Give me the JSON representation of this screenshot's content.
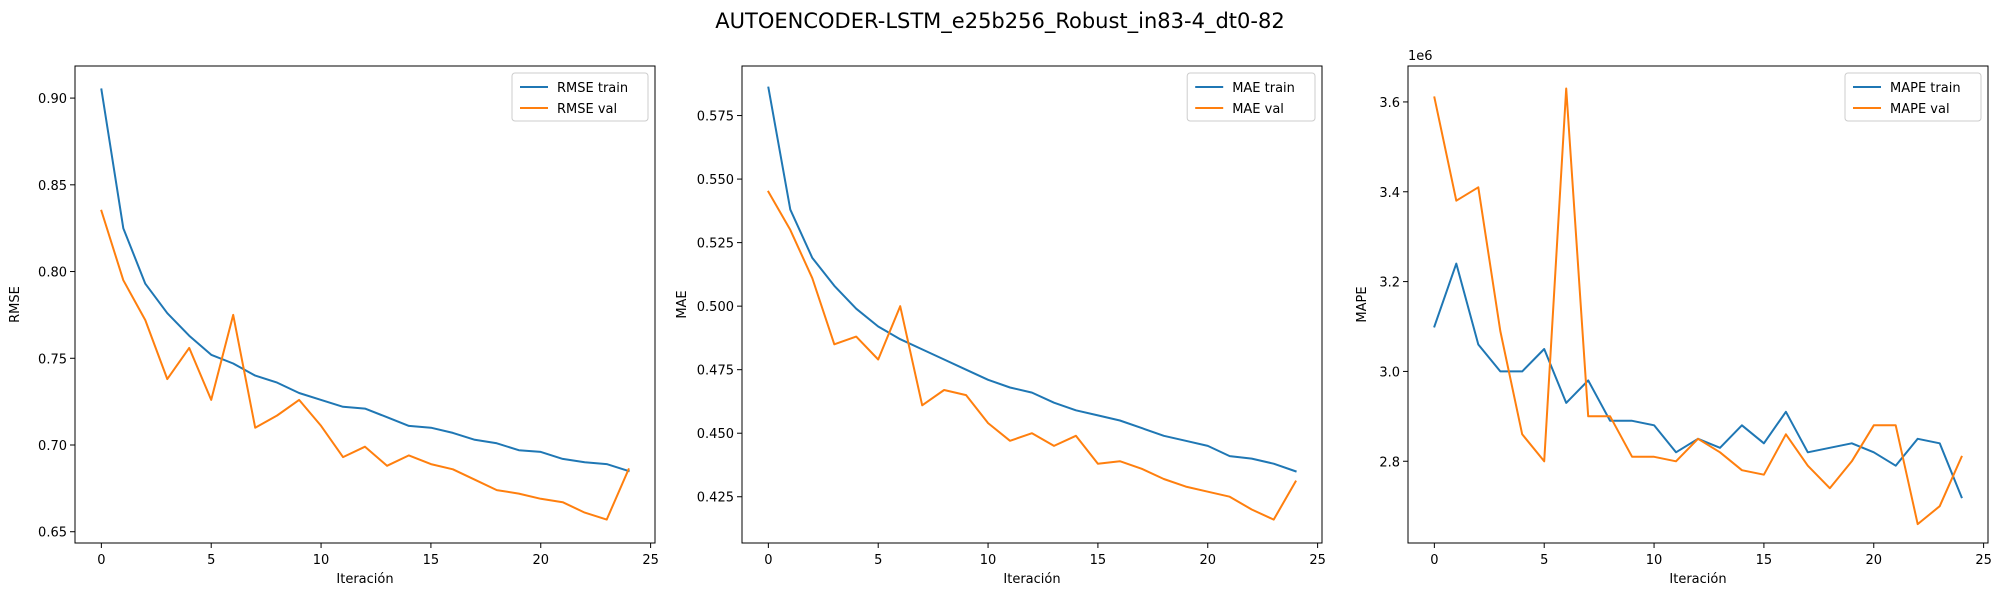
{
  "title": "AUTOENCODER-LSTM_e25b256_Robust_in83-4_dt0-82",
  "colors": {
    "train": "#1f77b4",
    "val": "#ff7f0e"
  },
  "chart_data": [
    {
      "type": "line",
      "xlabel": "Iteración",
      "ylabel": "RMSE",
      "xlim": [
        -1.2,
        25.2
      ],
      "ylim": [
        0.6435,
        0.9185
      ],
      "xticks": [
        0,
        5,
        10,
        15,
        20,
        25
      ],
      "xtick_labels": [
        "0",
        "5",
        "10",
        "15",
        "20",
        "25"
      ],
      "yticks": [
        0.65,
        0.7,
        0.75,
        0.8,
        0.85,
        0.9
      ],
      "ytick_labels": [
        "0.65",
        "0.70",
        "0.75",
        "0.80",
        "0.85",
        "0.90"
      ],
      "offset_text": "",
      "legend_position": "upper right",
      "x": [
        0,
        1,
        2,
        3,
        4,
        5,
        6,
        7,
        8,
        9,
        10,
        11,
        12,
        13,
        14,
        15,
        16,
        17,
        18,
        19,
        20,
        21,
        22,
        23,
        24
      ],
      "series": [
        {
          "name": "RMSE train",
          "color": "#1f77b4",
          "values": [
            0.905,
            0.825,
            0.793,
            0.776,
            0.763,
            0.752,
            0.747,
            0.74,
            0.736,
            0.73,
            0.726,
            0.722,
            0.721,
            0.716,
            0.711,
            0.71,
            0.707,
            0.703,
            0.701,
            0.697,
            0.696,
            0.692,
            0.69,
            0.689,
            0.685
          ]
        },
        {
          "name": "RMSE val",
          "color": "#ff7f0e",
          "values": [
            0.835,
            0.795,
            0.772,
            0.738,
            0.756,
            0.726,
            0.775,
            0.71,
            0.717,
            0.726,
            0.711,
            0.693,
            0.699,
            0.688,
            0.694,
            0.689,
            0.686,
            0.68,
            0.674,
            0.672,
            0.669,
            0.667,
            0.661,
            0.657,
            0.686
          ]
        }
      ]
    },
    {
      "type": "line",
      "xlabel": "Iteración",
      "ylabel": "MAE",
      "xlim": [
        -1.2,
        25.2
      ],
      "ylim": [
        0.4068,
        0.5945
      ],
      "xticks": [
        0,
        5,
        10,
        15,
        20,
        25
      ],
      "xtick_labels": [
        "0",
        "5",
        "10",
        "15",
        "20",
        "25"
      ],
      "yticks": [
        0.425,
        0.45,
        0.475,
        0.5,
        0.525,
        0.55,
        0.575
      ],
      "ytick_labels": [
        "0.425",
        "0.450",
        "0.475",
        "0.500",
        "0.525",
        "0.550",
        "0.575"
      ],
      "offset_text": "",
      "legend_position": "upper right",
      "x": [
        0,
        1,
        2,
        3,
        4,
        5,
        6,
        7,
        8,
        9,
        10,
        11,
        12,
        13,
        14,
        15,
        16,
        17,
        18,
        19,
        20,
        21,
        22,
        23,
        24
      ],
      "series": [
        {
          "name": "MAE train",
          "color": "#1f77b4",
          "values": [
            0.586,
            0.538,
            0.519,
            0.508,
            0.499,
            0.492,
            0.487,
            0.483,
            0.479,
            0.475,
            0.471,
            0.468,
            0.466,
            0.462,
            0.459,
            0.457,
            0.455,
            0.452,
            0.449,
            0.447,
            0.445,
            0.441,
            0.44,
            0.438,
            0.435
          ]
        },
        {
          "name": "MAE val",
          "color": "#ff7f0e",
          "values": [
            0.545,
            0.53,
            0.511,
            0.485,
            0.488,
            0.479,
            0.5,
            0.461,
            0.467,
            0.465,
            0.454,
            0.447,
            0.45,
            0.445,
            0.449,
            0.438,
            0.439,
            0.436,
            0.432,
            0.429,
            0.427,
            0.425,
            0.42,
            0.416,
            0.431
          ]
        }
      ]
    },
    {
      "type": "line",
      "xlabel": "Iteración",
      "ylabel": "MAPE",
      "xlim": [
        -1.2,
        25.2
      ],
      "ylim": [
        2.618,
        3.68
      ],
      "xticks": [
        0,
        5,
        10,
        15,
        20,
        25
      ],
      "xtick_labels": [
        "0",
        "5",
        "10",
        "15",
        "20",
        "25"
      ],
      "yticks": [
        2.8,
        3.0,
        3.2,
        3.4,
        3.6
      ],
      "ytick_labels": [
        "2.8",
        "3.0",
        "3.2",
        "3.4",
        "3.6"
      ],
      "offset_text": "1e6",
      "legend_position": "upper right",
      "x": [
        0,
        1,
        2,
        3,
        4,
        5,
        6,
        7,
        8,
        9,
        10,
        11,
        12,
        13,
        14,
        15,
        16,
        17,
        18,
        19,
        20,
        21,
        22,
        23,
        24
      ],
      "series": [
        {
          "name": "MAPE train",
          "color": "#1f77b4",
          "values": [
            3.1,
            3.24,
            3.06,
            3.0,
            3.0,
            3.05,
            2.93,
            2.98,
            2.89,
            2.89,
            2.88,
            2.82,
            2.85,
            2.83,
            2.88,
            2.84,
            2.91,
            2.82,
            2.83,
            2.84,
            2.82,
            2.79,
            2.85,
            2.84,
            2.72
          ]
        },
        {
          "name": "MAPE val",
          "color": "#ff7f0e",
          "values": [
            3.61,
            3.38,
            3.41,
            3.09,
            2.86,
            2.8,
            3.63,
            2.9,
            2.9,
            2.81,
            2.81,
            2.8,
            2.85,
            2.82,
            2.78,
            2.77,
            2.86,
            2.79,
            2.74,
            2.8,
            2.88,
            2.88,
            2.66,
            2.7,
            2.81
          ]
        }
      ]
    }
  ]
}
